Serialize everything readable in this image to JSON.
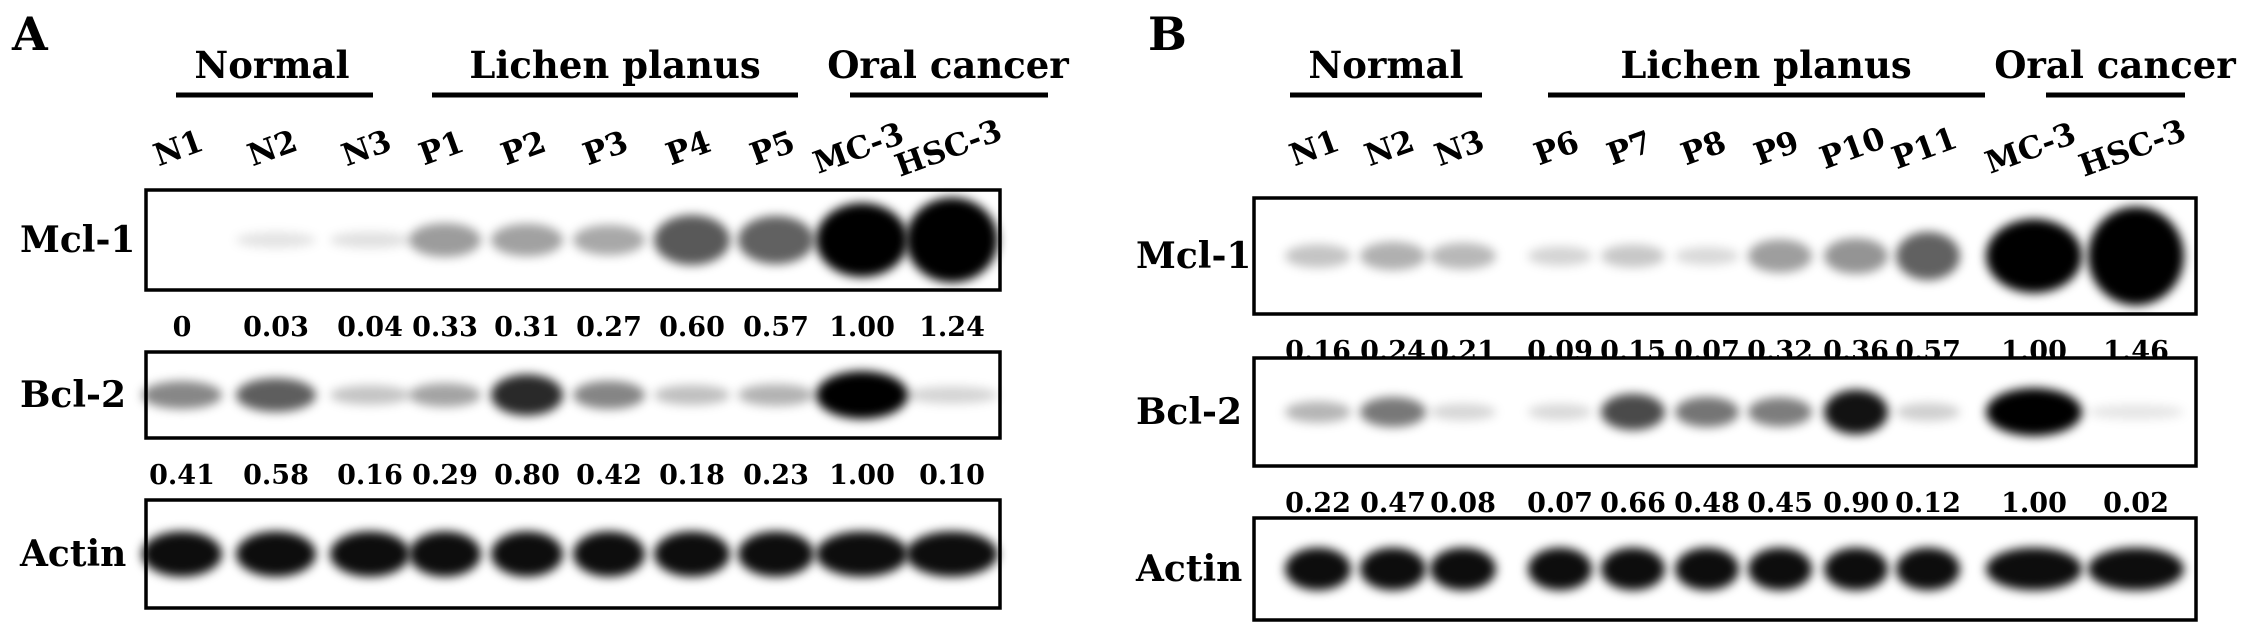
{
  "figure": {
    "panels": [
      {
        "letter": "A",
        "groups": [
          {
            "label": "Normal",
            "lanes": [
              0,
              2
            ]
          },
          {
            "label": "Lichen planus",
            "lanes": [
              3,
              7
            ]
          },
          {
            "label": "Oral cancer",
            "lanes": [
              8,
              9
            ]
          }
        ],
        "lanes": [
          "N1",
          "N2",
          "N3",
          "P1",
          "P2",
          "P3",
          "P4",
          "P5",
          "MC-3",
          "HSC-3"
        ],
        "rows": [
          {
            "label": "Mcl-1",
            "values": [
              "0",
              "0.03",
              "0.04",
              "0.33",
              "0.31",
              "0.27",
              "0.60",
              "0.57",
              "1.00",
              "1.24"
            ],
            "intensity": [
              0,
              0.03,
              0.04,
              0.33,
              0.31,
              0.27,
              0.6,
              0.57,
              1.0,
              1.24
            ]
          },
          {
            "label": "Bcl-2",
            "values": [
              "0.41",
              "0.58",
              "0.16",
              "0.29",
              "0.80",
              "0.42",
              "0.18",
              "0.23",
              "1.00",
              "0.10"
            ],
            "intensity": [
              0.41,
              0.58,
              0.16,
              0.29,
              0.8,
              0.42,
              0.18,
              0.23,
              1.0,
              0.1
            ]
          },
          {
            "label": "Actin",
            "values": [],
            "intensity": [
              1,
              1,
              1,
              1,
              1,
              1,
              1,
              1,
              1,
              1
            ]
          }
        ]
      },
      {
        "letter": "B",
        "groups": [
          {
            "label": "Normal",
            "lanes": [
              0,
              2
            ]
          },
          {
            "label": "Lichen planus",
            "lanes": [
              3,
              8
            ]
          },
          {
            "label": "Oral cancer",
            "lanes": [
              9,
              10
            ]
          }
        ],
        "lanes": [
          "N1",
          "N2",
          "N3",
          "P6",
          "P7",
          "P8",
          "P9",
          "P10",
          "P11",
          "MC-3",
          "HSC-3"
        ],
        "rows": [
          {
            "label": "Mcl-1",
            "values": [
              "0.16",
              "0.24",
              "0.21",
              "0.09",
              "0.15",
              "0.07",
              "0.32",
              "0.36",
              "0.57",
              "1.00",
              "1.46"
            ],
            "intensity": [
              0.16,
              0.24,
              0.21,
              0.09,
              0.15,
              0.07,
              0.32,
              0.36,
              0.57,
              1.0,
              1.46
            ]
          },
          {
            "label": "Bcl-2",
            "values": [
              "0.22",
              "0.47",
              "0.08",
              "0.07",
              "0.66",
              "0.48",
              "0.45",
              "0.90",
              "0.12",
              "1.00",
              "0.02"
            ],
            "intensity": [
              0.22,
              0.47,
              0.08,
              0.07,
              0.66,
              0.48,
              0.45,
              0.9,
              0.12,
              1.0,
              0.02
            ]
          },
          {
            "label": "Actin",
            "values": [],
            "intensity": [
              1,
              1,
              1,
              1,
              1,
              1,
              1,
              1,
              1,
              1,
              1
            ]
          }
        ]
      }
    ]
  }
}
